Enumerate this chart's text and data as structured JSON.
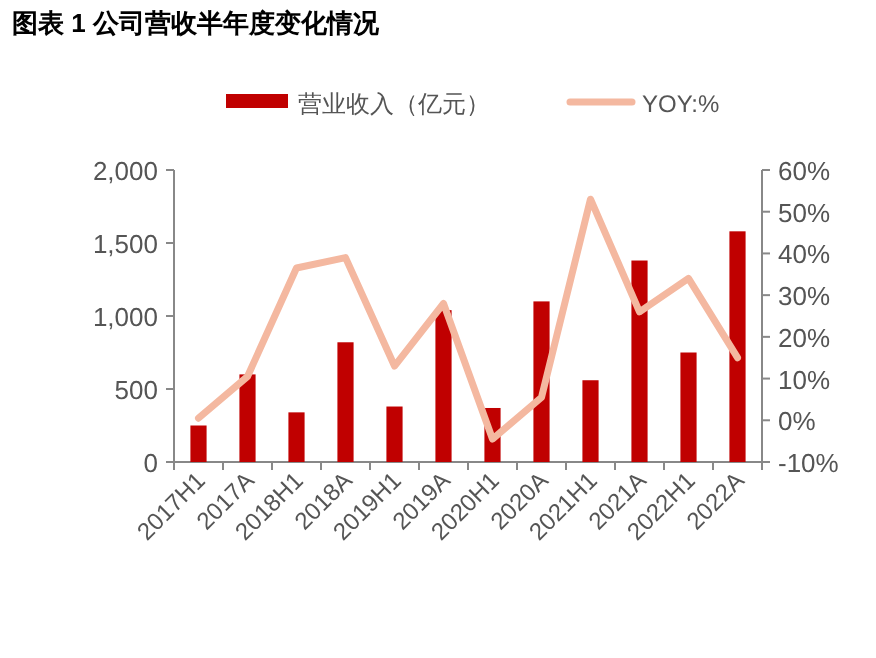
{
  "chart_data": {
    "type": "bar",
    "title": "图表 1   公司营收半年度变化情况",
    "categories": [
      "2017H1",
      "2017A",
      "2018H1",
      "2018A",
      "2019H1",
      "2019A",
      "2020H1",
      "2020A",
      "2021H1",
      "2021A",
      "2022H1",
      "2022A"
    ],
    "series": [
      {
        "name": "营业收入（亿元）",
        "color": "#c00000",
        "values": [
          250,
          600,
          340,
          820,
          380,
          1040,
          370,
          1100,
          560,
          1380,
          750,
          1580
        ]
      },
      {
        "name": "YOY:%",
        "type": "line",
        "axis": "y2",
        "color": "#f4b8a0",
        "values": [
          0.5,
          10.5,
          36.5,
          39,
          13,
          28,
          -4.5,
          5.5,
          53,
          26,
          34,
          15
        ]
      }
    ],
    "ylim": [
      0,
      2000
    ],
    "yticks": [
      0,
      500,
      {
        "value": 1000,
        "label": "1,000"
      },
      {
        "value": 1500,
        "label": "1,500"
      },
      {
        "value": 2000,
        "label": "2,000"
      }
    ],
    "y2lim": [
      -10,
      60
    ],
    "y2ticks": [
      {
        "value": -10,
        "label": "-10%"
      },
      {
        "value": 0,
        "label": "0%"
      },
      {
        "value": 10,
        "label": "10%"
      },
      {
        "value": 20,
        "label": "20%"
      },
      {
        "value": 30,
        "label": "30%"
      },
      {
        "value": 40,
        "label": "40%"
      },
      {
        "value": 50,
        "label": "50%"
      },
      {
        "value": 60,
        "label": "60%"
      }
    ],
    "grid": false,
    "legend": "top",
    "line_style": "solid",
    "marker": "none"
  }
}
